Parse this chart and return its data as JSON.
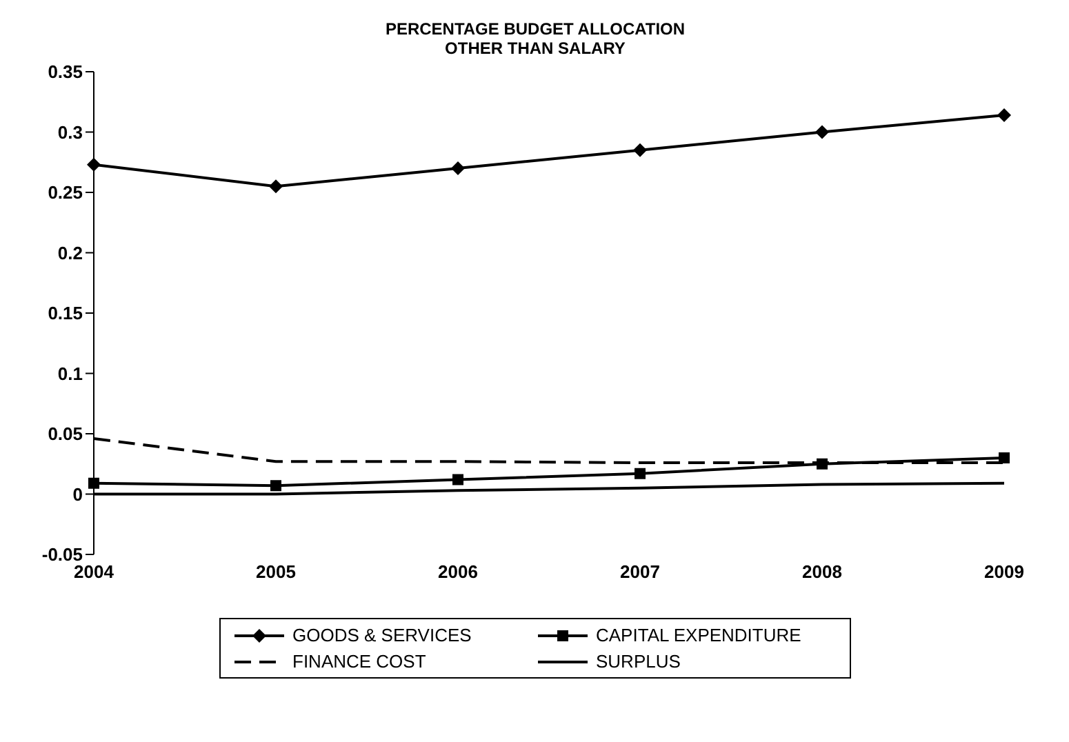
{
  "chart_data": {
    "type": "line",
    "title": "PERCENTAGE BUDGET ALLOCATION\nOTHER THAN SALARY",
    "categories": [
      "2004",
      "2005",
      "2006",
      "2007",
      "2008",
      "2009"
    ],
    "series": [
      {
        "name": "GOODS & SERVICES",
        "color": "#000000",
        "marker": "diamond",
        "line_style": "solid",
        "values": [
          0.273,
          0.255,
          0.27,
          0.285,
          0.3,
          0.314
        ]
      },
      {
        "name": "CAPITAL EXPENDITURE",
        "color": "#000000",
        "marker": "square",
        "line_style": "solid",
        "values": [
          0.009,
          0.007,
          0.012,
          0.017,
          0.025,
          0.03
        ]
      },
      {
        "name": "FINANCE COST",
        "color": "#000000",
        "marker": "none",
        "line_style": "dashed",
        "values": [
          0.046,
          0.027,
          0.027,
          0.026,
          0.026,
          0.026
        ]
      },
      {
        "name": "SURPLUS",
        "color": "#000000",
        "marker": "none",
        "line_style": "solid",
        "values": [
          0,
          0,
          0.003,
          0.005,
          0.008,
          0.009
        ]
      }
    ],
    "ylim": [
      -0.05,
      0.35
    ],
    "yticks": [
      -0.05,
      0,
      0.05,
      0.1,
      0.15,
      0.2,
      0.25,
      0.3,
      0.35
    ],
    "grid": false,
    "legend": "bottom"
  }
}
